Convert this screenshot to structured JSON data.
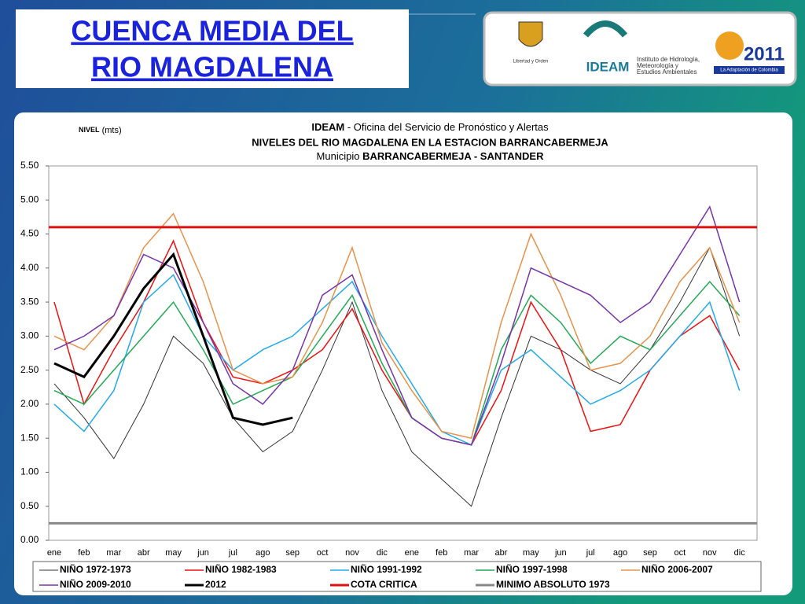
{
  "header": {
    "title_lines": [
      "CUENCA  MEDIA DEL",
      "RIO  MAGDALENA"
    ],
    "logos": {
      "ministry": "Libertad y Orden",
      "ideam": "IDEAM",
      "ideam_full": [
        "Instituto de Hidrología,",
        "Meteorología y",
        "Estudios Ambientales"
      ],
      "congress": "2011",
      "congress_tag": "La Adaptación de Colombia"
    }
  },
  "chart_data": {
    "type": "line",
    "title": {
      "org": "IDEAM",
      "text": " - Oficina del Servicio de Pronóstico y Alertas",
      "line2": "NIVELES DEL RIO MAGDALENA EN LA ESTACION BARRANCABERMEJA",
      "line3_prefix": "Municipio ",
      "line3_bold": "BARRANCABERMEJA - SANTANDER"
    },
    "y_label": {
      "bold": "NIVEL",
      "rest": " (mts)"
    },
    "categories": [
      "ene",
      "feb",
      "mar",
      "abr",
      "may",
      "jun",
      "jul",
      "ago",
      "sep",
      "oct",
      "nov",
      "dic",
      "ene",
      "feb",
      "mar",
      "abr",
      "may",
      "jun",
      "jul",
      "ago",
      "sep",
      "oct",
      "nov",
      "dic"
    ],
    "ylim": [
      0,
      5.5
    ],
    "yticks": [
      {
        "value": 0,
        "label": "0.00"
      },
      {
        "value": 0.5,
        "label": "0.50"
      },
      {
        "value": 1,
        "label": "1.00"
      },
      {
        "value": 1.5,
        "label": "1.50"
      },
      {
        "value": 2,
        "label": "2.00"
      },
      {
        "value": 2.5,
        "label": "2.50"
      },
      {
        "value": 3,
        "label": "3.00"
      },
      {
        "value": 3.5,
        "label": "3.50"
      },
      {
        "value": 4,
        "label": "4.00"
      },
      {
        "value": 4.5,
        "label": "4.50"
      },
      {
        "value": 5,
        "label": "5.00"
      },
      {
        "value": 5.5,
        "label": "5.50"
      }
    ],
    "grid": false,
    "series": [
      {
        "name": "NIÑO 1972-1973",
        "color": "#333333",
        "width": 1,
        "values": [
          2.3,
          1.8,
          1.2,
          2.0,
          3.0,
          2.6,
          1.8,
          1.3,
          1.6,
          2.5,
          3.5,
          2.2,
          1.3,
          0.9,
          0.5,
          1.8,
          3.0,
          2.8,
          2.5,
          2.3,
          2.8,
          3.5,
          4.3,
          3.0
        ]
      },
      {
        "name": "NIÑO 1982-1983",
        "color": "#ee1111",
        "width": 1.5,
        "values": [
          3.5,
          2.0,
          2.8,
          3.5,
          4.4,
          3.2,
          2.4,
          2.3,
          2.5,
          2.8,
          3.4,
          2.5,
          1.8,
          1.5,
          1.4,
          2.2,
          3.5,
          2.8,
          1.6,
          1.7,
          2.5,
          3.0,
          3.3,
          2.5
        ]
      },
      {
        "name": "NIÑO 1991-1992",
        "color": "#22aaee",
        "width": 1.5,
        "values": [
          2.0,
          1.6,
          2.2,
          3.5,
          3.9,
          3.0,
          2.5,
          2.8,
          3.0,
          3.4,
          3.8,
          3.0,
          2.3,
          1.6,
          1.4,
          2.5,
          2.8,
          2.4,
          2.0,
          2.2,
          2.5,
          3.0,
          3.5,
          2.2
        ]
      },
      {
        "name": "NIÑO 1997-1998",
        "color": "#22aa55",
        "width": 1.5,
        "values": [
          2.2,
          2.0,
          2.5,
          3.0,
          3.5,
          2.8,
          2.0,
          2.2,
          2.4,
          3.0,
          3.6,
          2.6,
          1.8,
          1.5,
          1.4,
          2.8,
          3.6,
          3.2,
          2.6,
          3.0,
          2.8,
          3.3,
          3.8,
          3.3
        ]
      },
      {
        "name": "NIÑO 2006-2007",
        "color": "#e8924a",
        "width": 1.5,
        "values": [
          3.0,
          2.8,
          3.3,
          4.3,
          4.8,
          3.8,
          2.5,
          2.3,
          2.4,
          3.2,
          4.3,
          2.9,
          2.2,
          1.6,
          1.5,
          3.2,
          4.5,
          3.6,
          2.5,
          2.6,
          3.0,
          3.8,
          4.3,
          3.2
        ]
      },
      {
        "name": "NIÑO 2009-2010",
        "color": "#7733aa",
        "width": 1.5,
        "values": [
          2.8,
          3.0,
          3.3,
          4.2,
          4.0,
          3.2,
          2.3,
          2.0,
          2.5,
          3.6,
          3.9,
          2.8,
          1.8,
          1.5,
          1.4,
          2.6,
          4.0,
          3.8,
          3.6,
          3.2,
          3.5,
          4.2,
          4.9,
          3.5
        ]
      },
      {
        "name": "2012",
        "color": "#000000",
        "width": 3,
        "values": [
          2.6,
          2.4,
          3.0,
          3.7,
          4.2,
          3.0,
          1.8,
          1.7,
          1.8,
          null,
          null,
          null,
          null,
          null,
          null,
          null,
          null,
          null,
          null,
          null,
          null,
          null,
          null,
          null
        ]
      }
    ],
    "reference_lines": [
      {
        "name": "COTA CRITICA",
        "color": "#dd1111",
        "value": 4.6
      },
      {
        "name": "MINIMO ABSOLUTO 1973",
        "color": "#888888",
        "value": 0.25
      }
    ]
  }
}
